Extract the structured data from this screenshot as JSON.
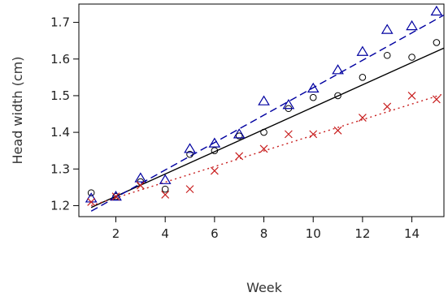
{
  "chart_data": {
    "type": "scatter",
    "xlabel": "Week",
    "ylabel": "Head width (cm)",
    "xlim": [
      0.5,
      15.3
    ],
    "ylim": [
      1.17,
      1.75
    ],
    "x_ticks": [
      2,
      4,
      6,
      8,
      10,
      12,
      14
    ],
    "y_ticks": [
      1.2,
      1.3,
      1.4,
      1.5,
      1.6,
      1.7
    ],
    "grid": false,
    "legend": "none",
    "series": [
      {
        "marker": "circle",
        "color": "#000000",
        "line_style": "solid",
        "x": [
          1,
          2,
          3,
          4,
          5,
          6,
          7,
          8,
          9,
          10,
          11,
          12,
          13,
          14,
          15
        ],
        "values": [
          1.235,
          1.225,
          1.265,
          1.245,
          1.34,
          1.35,
          1.39,
          1.4,
          1.465,
          1.495,
          1.5,
          1.55,
          1.61,
          1.605,
          1.645
        ],
        "fit": {
          "x": [
            1,
            15.3
          ],
          "y": [
            1.195,
            1.63
          ]
        }
      },
      {
        "marker": "triangle",
        "color": "#0000a0",
        "line_style": "dashed",
        "x": [
          1,
          2,
          3,
          4,
          5,
          6,
          7,
          8,
          9,
          10,
          11,
          12,
          13,
          14,
          15
        ],
        "values": [
          1.22,
          1.225,
          1.275,
          1.27,
          1.355,
          1.37,
          1.395,
          1.485,
          1.475,
          1.52,
          1.57,
          1.62,
          1.68,
          1.69,
          1.73
        ],
        "fit": {
          "x": [
            1,
            15.3
          ],
          "y": [
            1.185,
            1.72
          ]
        }
      },
      {
        "marker": "cross",
        "color": "#c81e1e",
        "line_style": "dotted",
        "x": [
          1,
          2,
          3,
          4,
          5,
          6,
          7,
          8,
          9,
          10,
          11,
          12,
          13,
          14,
          15
        ],
        "values": [
          1.21,
          1.225,
          1.255,
          1.23,
          1.245,
          1.295,
          1.335,
          1.355,
          1.395,
          1.395,
          1.405,
          1.44,
          1.47,
          1.5,
          1.49
        ],
        "fit": {
          "x": [
            1,
            15.3
          ],
          "y": [
            1.2,
            1.505
          ]
        }
      }
    ]
  }
}
